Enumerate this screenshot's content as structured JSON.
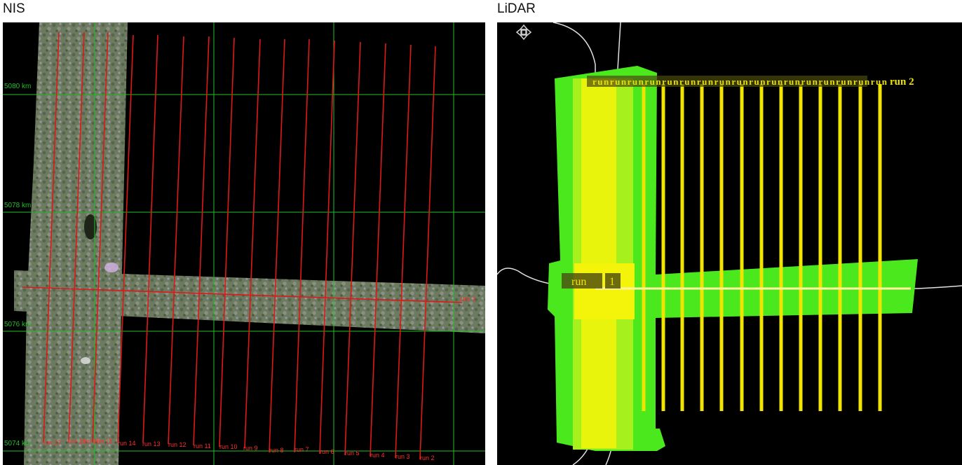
{
  "nis": {
    "title": "NIS",
    "grid_labels": [
      "5080 km",
      "5078 km",
      "5076 km",
      "5074 km"
    ],
    "cross_run_label": "run 1",
    "run_labels": [
      "run 17",
      "run 16",
      "run 16",
      "run 15",
      "run 14",
      "run 13",
      "run 12",
      "run 11",
      "run 10",
      "run 9",
      "run 8",
      "run 7",
      "run 6",
      "run 5",
      "run 4",
      "run 3",
      "run 2"
    ],
    "colors": {
      "grid": "#1fbf2a",
      "flight_line": "#e01818",
      "label": "#ff3030",
      "imagery": "#6f7f62"
    }
  },
  "lidar": {
    "title": "LiDAR",
    "top_label": "run 2",
    "top_strip_text": "runrunrunrunrunrunrunrunrunrunrunrunrunrunrunrunrun",
    "cross_label": [
      "run",
      "1"
    ],
    "pan_icon": "move-crosshair-icon",
    "colors": {
      "swath_outer": "#4be81e",
      "swath_mid": "#a6f01e",
      "swath_core": "#f4f40a",
      "flight_line": "#f0e400",
      "label_box": "#4a4a10",
      "road": "#e0e0e0"
    }
  }
}
